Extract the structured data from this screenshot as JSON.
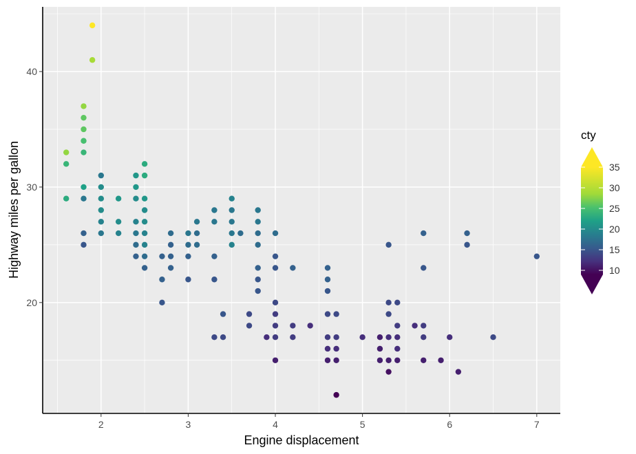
{
  "chart_data": {
    "type": "scatter",
    "xlabel": "Engine displacement",
    "ylabel": "Highway miles per gallon",
    "xlim": [
      1.33,
      7.27
    ],
    "ylim": [
      10.4,
      45.6
    ],
    "x_ticks": [
      2,
      3,
      4,
      5,
      6,
      7
    ],
    "y_ticks": [
      20,
      30,
      40
    ],
    "grid": true,
    "color_legend": {
      "title": "cty",
      "ticks": [
        10,
        15,
        20,
        25,
        30,
        35
      ],
      "range": [
        9,
        35
      ],
      "placement": "right",
      "palette": "viridis"
    },
    "points": [
      [
        1.6,
        33,
        28
      ],
      [
        1.6,
        32,
        24
      ],
      [
        1.6,
        29,
        23
      ],
      [
        1.8,
        37,
        28
      ],
      [
        1.8,
        36,
        26
      ],
      [
        1.8,
        35,
        26
      ],
      [
        1.8,
        34,
        25
      ],
      [
        1.8,
        33,
        24
      ],
      [
        1.8,
        30,
        22
      ],
      [
        1.8,
        29,
        18
      ],
      [
        1.8,
        26,
        16
      ],
      [
        1.8,
        25,
        15
      ],
      [
        1.9,
        44,
        35
      ],
      [
        1.9,
        41,
        29
      ],
      [
        2.0,
        31,
        18
      ],
      [
        2.0,
        30,
        20
      ],
      [
        2.0,
        29,
        20
      ],
      [
        2.0,
        28,
        20
      ],
      [
        2.0,
        27,
        19
      ],
      [
        2.0,
        26,
        18
      ],
      [
        2.2,
        29,
        21
      ],
      [
        2.2,
        27,
        20
      ],
      [
        2.2,
        26,
        19
      ],
      [
        2.4,
        31,
        21
      ],
      [
        2.4,
        30,
        21
      ],
      [
        2.4,
        29,
        20
      ],
      [
        2.4,
        27,
        19
      ],
      [
        2.4,
        26,
        18
      ],
      [
        2.4,
        25,
        17
      ],
      [
        2.4,
        24,
        16
      ],
      [
        2.5,
        32,
        23
      ],
      [
        2.5,
        31,
        23
      ],
      [
        2.5,
        29,
        21
      ],
      [
        2.5,
        28,
        20
      ],
      [
        2.5,
        27,
        20
      ],
      [
        2.5,
        26,
        19
      ],
      [
        2.5,
        25,
        19
      ],
      [
        2.5,
        24,
        17
      ],
      [
        2.5,
        23,
        16
      ],
      [
        2.7,
        24,
        16
      ],
      [
        2.7,
        22,
        16
      ],
      [
        2.7,
        20,
        15
      ],
      [
        2.8,
        26,
        17
      ],
      [
        2.8,
        25,
        16
      ],
      [
        2.8,
        24,
        16
      ],
      [
        2.8,
        23,
        16
      ],
      [
        3.0,
        26,
        18
      ],
      [
        3.0,
        25,
        17
      ],
      [
        3.0,
        24,
        16
      ],
      [
        3.0,
        22,
        15
      ],
      [
        3.1,
        27,
        18
      ],
      [
        3.1,
        26,
        17
      ],
      [
        3.1,
        25,
        17
      ],
      [
        3.3,
        28,
        18
      ],
      [
        3.3,
        27,
        18
      ],
      [
        3.3,
        24,
        16
      ],
      [
        3.3,
        22,
        15
      ],
      [
        3.3,
        17,
        14
      ],
      [
        3.4,
        19,
        15
      ],
      [
        3.4,
        17,
        14
      ],
      [
        3.5,
        29,
        19
      ],
      [
        3.5,
        28,
        18
      ],
      [
        3.5,
        27,
        18
      ],
      [
        3.5,
        26,
        18
      ],
      [
        3.5,
        25,
        19
      ],
      [
        3.6,
        26,
        17
      ],
      [
        3.7,
        19,
        14
      ],
      [
        3.7,
        18,
        14
      ],
      [
        3.8,
        28,
        18
      ],
      [
        3.8,
        27,
        18
      ],
      [
        3.8,
        26,
        17
      ],
      [
        3.8,
        25,
        17
      ],
      [
        3.8,
        23,
        16
      ],
      [
        3.8,
        22,
        15
      ],
      [
        3.8,
        21,
        15
      ],
      [
        3.9,
        17,
        12
      ],
      [
        4.0,
        26,
        17
      ],
      [
        4.0,
        24,
        15
      ],
      [
        4.0,
        23,
        15
      ],
      [
        4.0,
        20,
        14
      ],
      [
        4.0,
        19,
        13
      ],
      [
        4.0,
        18,
        13
      ],
      [
        4.0,
        17,
        13
      ],
      [
        4.0,
        15,
        11
      ],
      [
        4.2,
        23,
        16
      ],
      [
        4.2,
        18,
        13
      ],
      [
        4.2,
        17,
        13
      ],
      [
        4.4,
        18,
        12
      ],
      [
        4.6,
        23,
        16
      ],
      [
        4.6,
        22,
        16
      ],
      [
        4.6,
        21,
        15
      ],
      [
        4.6,
        19,
        14
      ],
      [
        4.6,
        17,
        13
      ],
      [
        4.6,
        16,
        12
      ],
      [
        4.6,
        15,
        11
      ],
      [
        4.7,
        19,
        14
      ],
      [
        4.7,
        17,
        13
      ],
      [
        4.7,
        16,
        12
      ],
      [
        4.7,
        15,
        11
      ],
      [
        4.7,
        12,
        9
      ],
      [
        5.0,
        17,
        12
      ],
      [
        5.2,
        17,
        11
      ],
      [
        5.2,
        16,
        11
      ],
      [
        5.2,
        15,
        11
      ],
      [
        5.3,
        25,
        15
      ],
      [
        5.3,
        20,
        14
      ],
      [
        5.3,
        19,
        14
      ],
      [
        5.3,
        17,
        12
      ],
      [
        5.3,
        15,
        11
      ],
      [
        5.3,
        14,
        10
      ],
      [
        5.4,
        20,
        14
      ],
      [
        5.4,
        18,
        13
      ],
      [
        5.4,
        17,
        12
      ],
      [
        5.4,
        16,
        12
      ],
      [
        5.4,
        15,
        11
      ],
      [
        5.6,
        18,
        12
      ],
      [
        5.7,
        26,
        16
      ],
      [
        5.7,
        23,
        15
      ],
      [
        5.7,
        18,
        13
      ],
      [
        5.7,
        17,
        13
      ],
      [
        5.7,
        15,
        11
      ],
      [
        5.9,
        15,
        11
      ],
      [
        6.0,
        17,
        12
      ],
      [
        6.1,
        14,
        11
      ],
      [
        6.2,
        26,
        16
      ],
      [
        6.2,
        25,
        15
      ],
      [
        6.5,
        17,
        14
      ],
      [
        7.0,
        24,
        15
      ]
    ]
  }
}
